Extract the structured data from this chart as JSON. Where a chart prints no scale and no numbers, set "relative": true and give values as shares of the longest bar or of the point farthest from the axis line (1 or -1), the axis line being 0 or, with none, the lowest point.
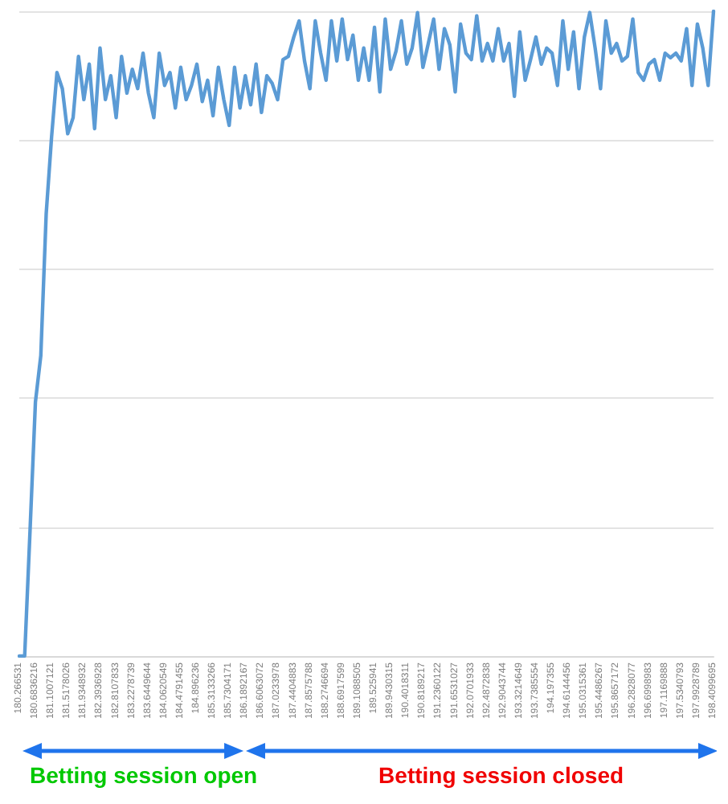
{
  "chart_data": {
    "type": "line",
    "relative": true,
    "color": "#5b9bd5",
    "grid": "y",
    "categories": [
      "180.266531",
      null,
      null,
      "180.6836216",
      null,
      null,
      "181.1007121",
      null,
      null,
      "181.5178026",
      null,
      null,
      "181.9348932",
      null,
      null,
      "182.3936928",
      null,
      null,
      "182.8107833",
      null,
      null,
      "183.2278739",
      null,
      null,
      "183.6449644",
      null,
      null,
      "184.0620549",
      null,
      null,
      "184.4791455",
      null,
      null,
      "184.896236",
      null,
      null,
      "185.3133266",
      null,
      null,
      "185.7304171",
      null,
      null,
      "186.1892167",
      null,
      null,
      "186.6063072",
      null,
      null,
      "187.0233978",
      null,
      null,
      "187.4404883",
      null,
      null,
      "187.8575788",
      null,
      null,
      "188.2746694",
      null,
      null,
      "188.6917599",
      null,
      null,
      "189.1088505",
      null,
      null,
      "189.525941",
      null,
      null,
      "189.9430315",
      null,
      null,
      "190.4018311",
      null,
      null,
      "190.8189217",
      null,
      null,
      "191.2360122",
      null,
      null,
      "191.6531027",
      null,
      null,
      "192.0701933",
      null,
      null,
      "192.4872838",
      null,
      null,
      "192.9043744",
      null,
      null,
      "193.3214649",
      null,
      null,
      "193.7385554",
      null,
      null,
      "194.197355",
      null,
      null,
      "194.6144456",
      null,
      null,
      "195.0315361",
      null,
      null,
      "195.4486267",
      null,
      null,
      "195.8657172",
      null,
      null,
      "196.2828077",
      null,
      null,
      "196.6998983",
      null,
      null,
      "197.1169888",
      null,
      null,
      "197.5340793",
      null,
      null,
      "197.9928789",
      null,
      null,
      "198.4099695"
    ],
    "values": [
      0,
      0,
      0.195,
      0.394,
      0.466,
      0.686,
      0.805,
      0.905,
      0.88,
      0.81,
      0.835,
      0.93,
      0.863,
      0.918,
      0.818,
      0.943,
      0.863,
      0.9,
      0.835,
      0.93,
      0.873,
      0.91,
      0.88,
      0.935,
      0.873,
      0.835,
      0.935,
      0.885,
      0.905,
      0.85,
      0.913,
      0.863,
      0.885,
      0.918,
      0.86,
      0.893,
      0.838,
      0.913,
      0.863,
      0.823,
      0.913,
      0.85,
      0.9,
      0.855,
      0.918,
      0.843,
      0.9,
      0.888,
      0.863,
      0.925,
      0.93,
      0.96,
      0.985,
      0.923,
      0.88,
      0.985,
      0.935,
      0.893,
      0.985,
      0.923,
      0.988,
      0.925,
      0.963,
      0.893,
      0.943,
      0.893,
      0.975,
      0.875,
      0.988,
      0.91,
      0.938,
      0.985,
      0.918,
      0.943,
      0.998,
      0.913,
      0.95,
      0.988,
      0.91,
      0.973,
      0.948,
      0.875,
      0.98,
      0.935,
      0.925,
      0.993,
      0.923,
      0.95,
      0.923,
      0.973,
      0.923,
      0.95,
      0.868,
      0.968,
      0.893,
      0.925,
      0.96,
      0.918,
      0.943,
      0.935,
      0.885,
      0.985,
      0.91,
      0.968,
      0.88,
      0.96,
      0.998,
      0.943,
      0.88,
      0.985,
      0.935,
      0.95,
      0.923,
      0.93,
      0.988,
      0.905,
      0.893,
      0.918,
      0.925,
      0.893,
      0.935,
      0.928,
      0.935,
      0.923,
      0.973,
      0.885,
      0.98,
      0.943,
      0.885,
      1
    ],
    "annotations": [
      "Betting session open",
      "Betting session closed"
    ]
  }
}
